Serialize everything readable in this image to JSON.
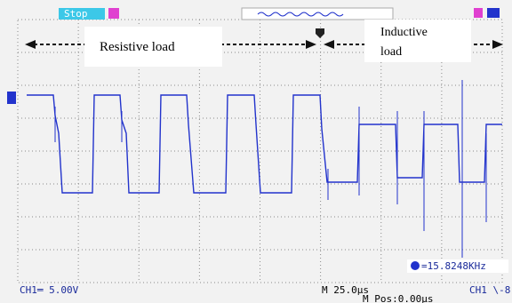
{
  "status": "Stop",
  "annotations": {
    "resistive": "Resistive  load",
    "inductive_line1": "Inductive",
    "inductive_line2": "load"
  },
  "frequency": "=15.8248KHz",
  "ch1_scale": "CH1═ 5.00V",
  "timebase": "M 25.0μs",
  "position": "M Pos:0.00μs",
  "trigger": "CH1 \\-8"
}
